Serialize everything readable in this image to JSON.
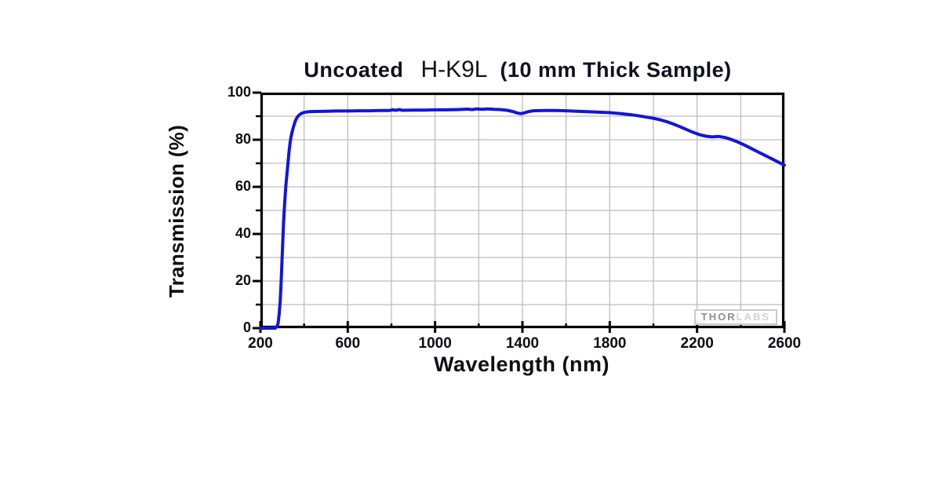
{
  "title": {
    "prefix": "Uncoated",
    "material": "H-K9L",
    "suffix": "(10 mm Thick Sample)"
  },
  "watermark": {
    "part1": "THOR",
    "part2": "LABS"
  },
  "colors": {
    "curve": "#1414dd",
    "grid": "#bdbdbd",
    "frame": "#000000",
    "text": "#0d0d14",
    "watermark_dark": "#8f8f8f",
    "watermark_light": "#d3d3d3"
  },
  "chart_data": {
    "type": "line",
    "title": "Uncoated H-K9L (10 mm Thick Sample)",
    "xlabel": "Wavelength (nm)",
    "ylabel": "Transmission (%)",
    "xlim": [
      200,
      2600
    ],
    "ylim": [
      0,
      100
    ],
    "x_major_ticks": [
      200,
      600,
      1000,
      1400,
      1800,
      2200,
      2600
    ],
    "x_minor_ticks": [
      400,
      800,
      1200,
      1600,
      2000,
      2400
    ],
    "y_major_ticks": [
      0,
      20,
      40,
      60,
      80,
      100
    ],
    "y_minor_ticks": [
      10,
      30,
      50,
      70,
      90
    ],
    "grid": {
      "x_every": 200,
      "y_every": 10,
      "on": true
    },
    "legend": null,
    "series": [
      {
        "name": "Transmission",
        "color": "#1414dd",
        "points": [
          [
            200,
            0
          ],
          [
            255,
            0
          ],
          [
            268,
            0
          ],
          [
            275,
            0.6
          ],
          [
            281,
            2
          ],
          [
            286,
            6
          ],
          [
            290,
            11
          ],
          [
            294,
            18
          ],
          [
            298,
            27
          ],
          [
            302,
            36
          ],
          [
            306,
            45
          ],
          [
            311,
            53
          ],
          [
            316,
            60
          ],
          [
            321,
            65
          ],
          [
            326,
            70
          ],
          [
            331,
            75
          ],
          [
            336,
            79
          ],
          [
            341,
            81.5
          ],
          [
            347,
            84
          ],
          [
            353,
            86
          ],
          [
            360,
            88
          ],
          [
            368,
            89.5
          ],
          [
            377,
            90.5
          ],
          [
            388,
            91.2
          ],
          [
            400,
            91.6
          ],
          [
            420,
            91.9
          ],
          [
            450,
            92.0
          ],
          [
            500,
            92.1
          ],
          [
            550,
            92.2
          ],
          [
            600,
            92.2
          ],
          [
            650,
            92.3
          ],
          [
            700,
            92.3
          ],
          [
            750,
            92.4
          ],
          [
            790,
            92.4
          ],
          [
            805,
            92.7
          ],
          [
            820,
            92.5
          ],
          [
            835,
            92.8
          ],
          [
            850,
            92.5
          ],
          [
            900,
            92.6
          ],
          [
            950,
            92.6
          ],
          [
            1000,
            92.7
          ],
          [
            1050,
            92.7
          ],
          [
            1100,
            92.8
          ],
          [
            1150,
            93.0
          ],
          [
            1170,
            92.8
          ],
          [
            1190,
            93.1
          ],
          [
            1215,
            92.9
          ],
          [
            1240,
            93.1
          ],
          [
            1270,
            92.9
          ],
          [
            1300,
            92.8
          ],
          [
            1330,
            92.5
          ],
          [
            1355,
            92.0
          ],
          [
            1375,
            91.4
          ],
          [
            1390,
            91.1
          ],
          [
            1405,
            91.3
          ],
          [
            1425,
            91.9
          ],
          [
            1450,
            92.3
          ],
          [
            1500,
            92.4
          ],
          [
            1550,
            92.4
          ],
          [
            1600,
            92.3
          ],
          [
            1650,
            92.1
          ],
          [
            1700,
            91.9
          ],
          [
            1750,
            91.7
          ],
          [
            1800,
            91.5
          ],
          [
            1850,
            91.1
          ],
          [
            1900,
            90.6
          ],
          [
            1950,
            89.9
          ],
          [
            2000,
            89.1
          ],
          [
            2030,
            88.5
          ],
          [
            2060,
            87.7
          ],
          [
            2090,
            86.7
          ],
          [
            2120,
            85.6
          ],
          [
            2150,
            84.4
          ],
          [
            2180,
            83.2
          ],
          [
            2210,
            82.2
          ],
          [
            2240,
            81.5
          ],
          [
            2270,
            81.2
          ],
          [
            2300,
            81.4
          ],
          [
            2330,
            80.9
          ],
          [
            2360,
            80.0
          ],
          [
            2390,
            78.9
          ],
          [
            2420,
            77.6
          ],
          [
            2450,
            76.2
          ],
          [
            2480,
            74.8
          ],
          [
            2510,
            73.4
          ],
          [
            2540,
            72.0
          ],
          [
            2570,
            70.6
          ],
          [
            2600,
            69.2
          ]
        ]
      }
    ]
  }
}
